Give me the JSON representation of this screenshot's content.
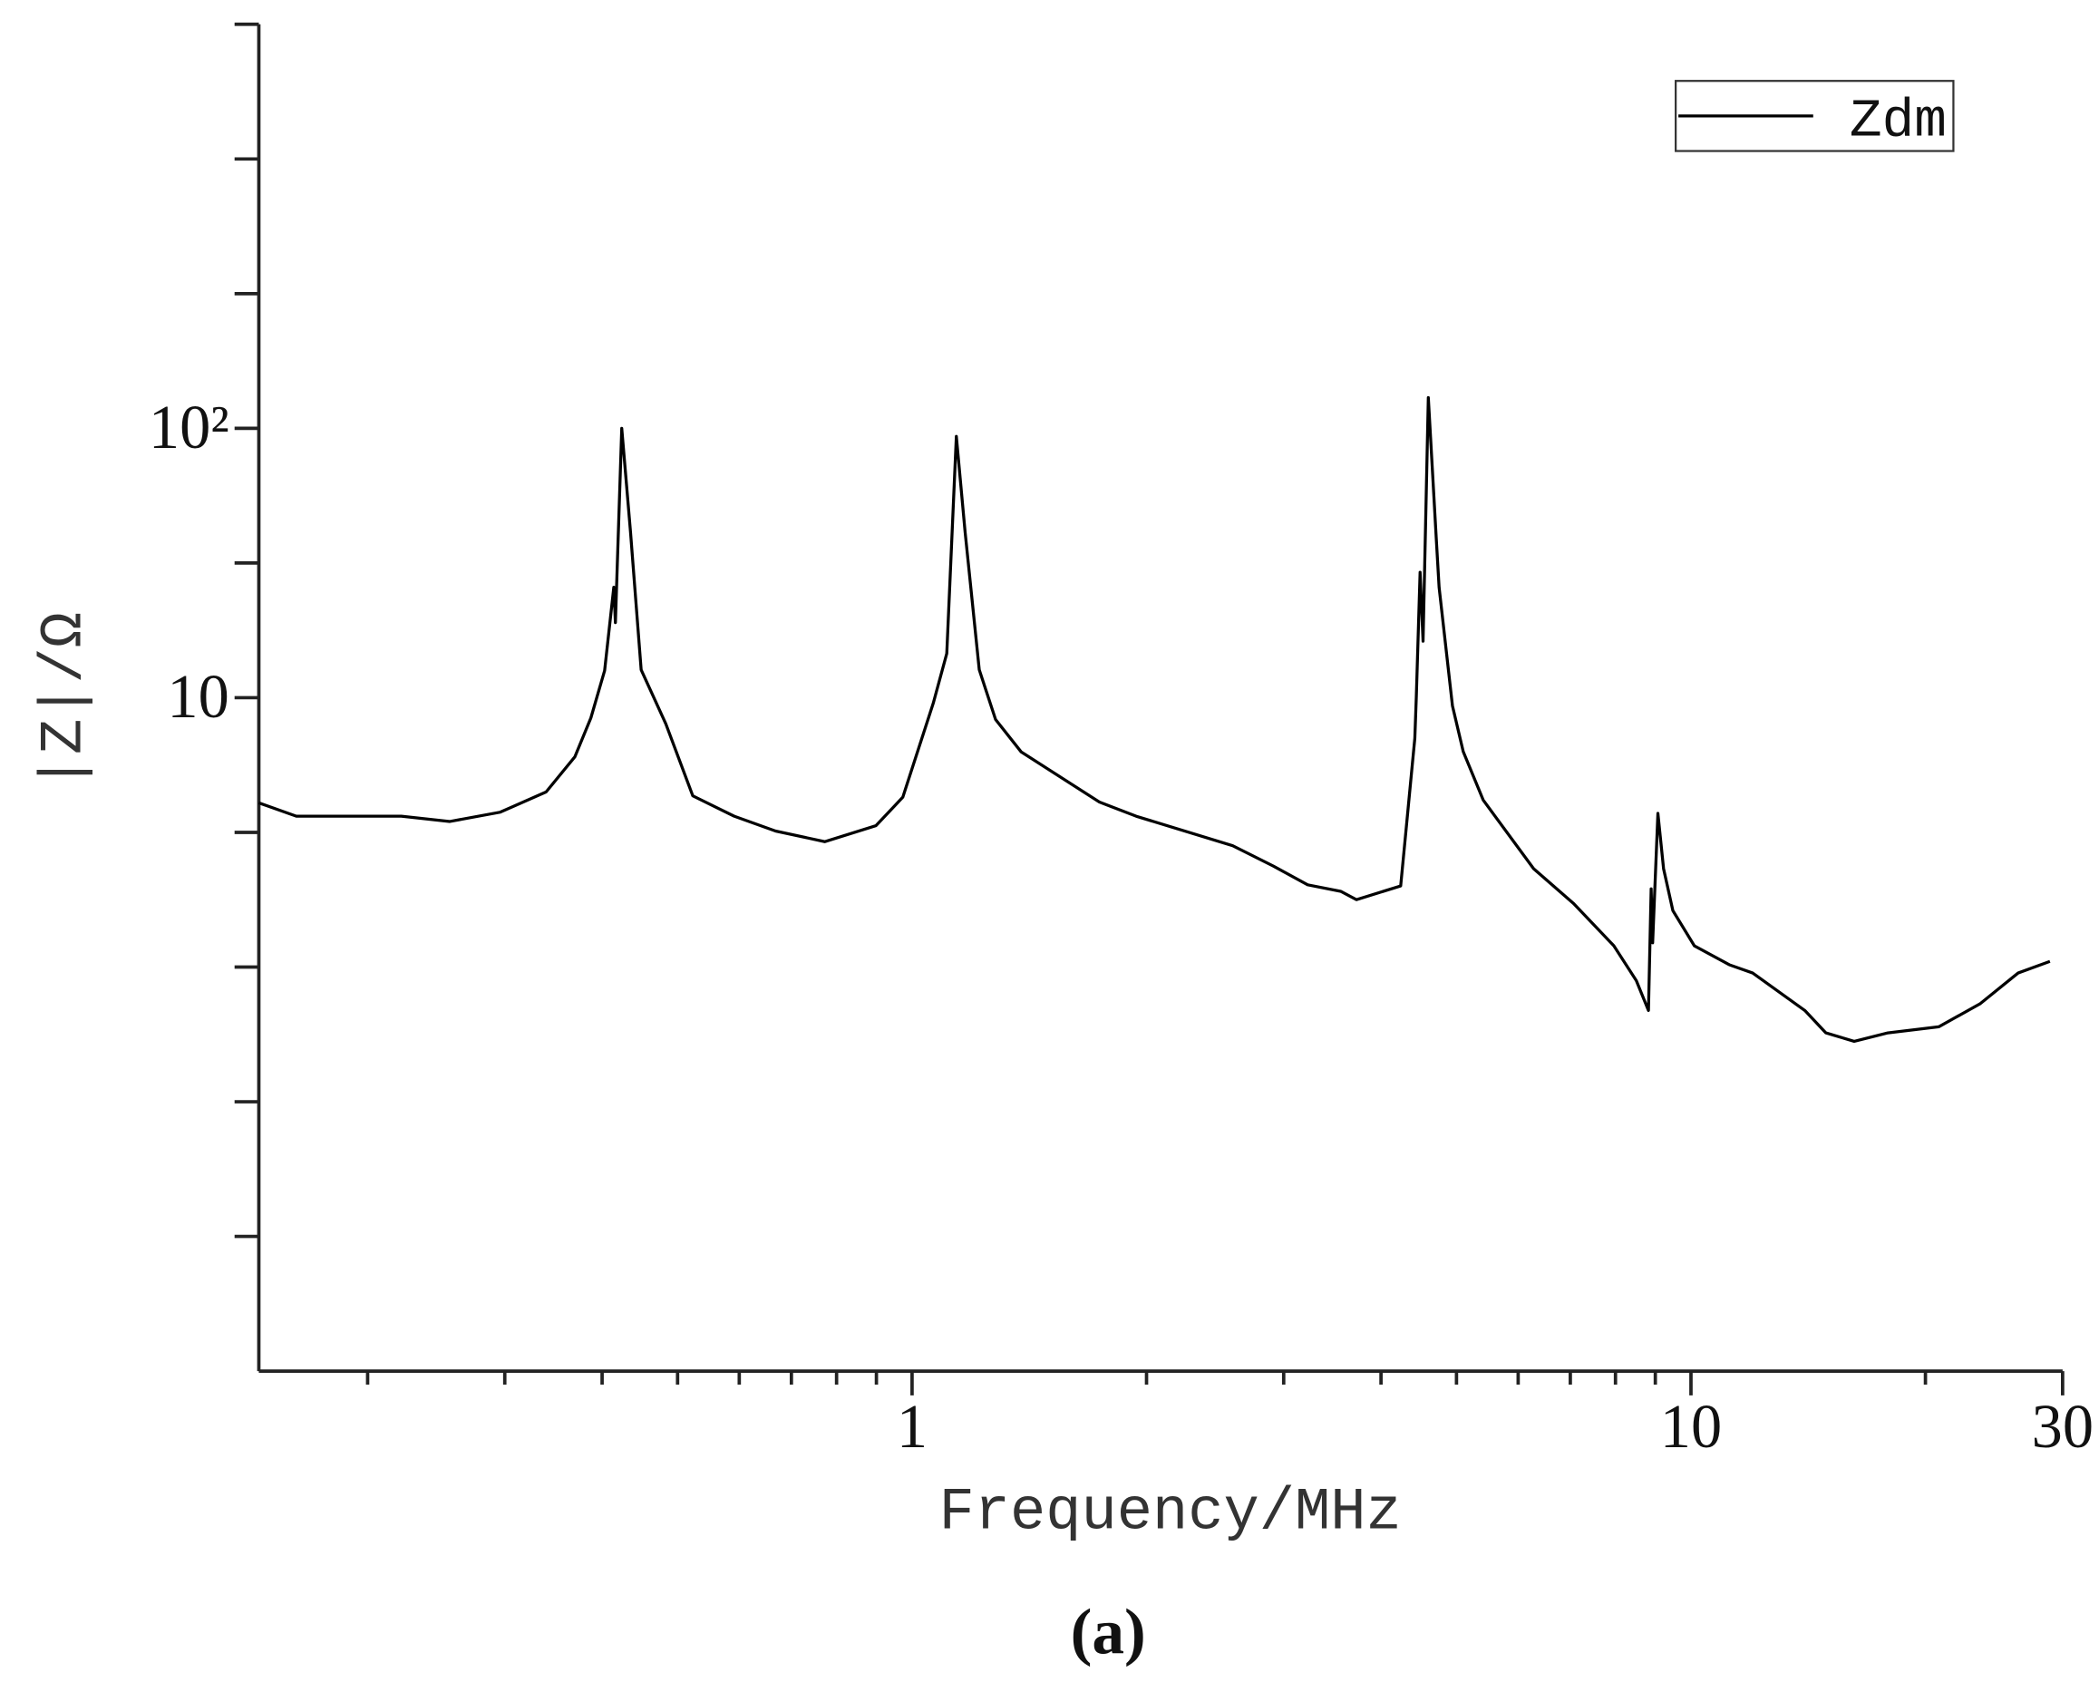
{
  "chart_data": {
    "type": "line",
    "xlabel": "Frequency/MHz",
    "ylabel": "|Z|/Ω",
    "caption": "(a)",
    "xscale": "log",
    "yscale": "log",
    "xlim": [
      0.145,
      30
    ],
    "ylim": [
      0.03162,
      3162.28
    ],
    "xticks": [
      1,
      10,
      30
    ],
    "xminor_ticks": [
      0.2,
      0.3,
      0.4,
      0.5,
      0.6,
      0.7,
      0.8,
      0.9,
      2,
      3,
      4,
      5,
      6,
      7,
      8,
      9,
      20
    ],
    "yticks": [
      {
        "value": 100,
        "label": "10²"
      },
      10
    ],
    "yminor_ticks": [
      3162.28,
      1000,
      316.23,
      31.62,
      3.162,
      1,
      0.3162,
      0.1
    ],
    "legend": "upper right",
    "x": [
      0.145,
      0.162,
      0.221,
      0.255,
      0.296,
      0.339,
      0.369,
      0.387,
      0.403,
      0.414,
      0.416,
      0.424,
      0.435,
      0.449,
      0.483,
      0.523,
      0.591,
      0.668,
      0.773,
      0.899,
      0.973,
      1.065,
      1.108,
      1.14,
      1.17,
      1.22,
      1.28,
      1.38,
      1.74,
      1.94,
      2.58,
      2.91,
      3.22,
      3.55,
      3.72,
      4.24,
      4.42,
      4.44,
      4.49,
      4.53,
      4.6,
      4.71,
      4.75,
      4.94,
      5.1,
      5.41,
      6.28,
      7.07,
      7.96,
      8.51,
      8.82,
      8.89,
      8.93,
      9.07,
      9.22,
      9.48,
      10.1,
      11.2,
      12.0,
      14.0,
      14.9,
      16.2,
      17.9,
      20.8,
      23.5,
      26.3,
      28.9
    ],
    "series": [
      {
        "name": "Zdm",
        "color": "#000000",
        "values": [
          4.07,
          3.63,
          3.63,
          3.47,
          3.76,
          4.47,
          6.03,
          8.41,
          12.6,
          25.7,
          19.0,
          100,
          41.2,
          12.7,
          8.0,
          4.32,
          3.63,
          3.2,
          2.92,
          3.35,
          4.27,
          9.55,
          14.6,
          93.3,
          41.2,
          12.7,
          8.3,
          6.3,
          4.1,
          3.63,
          2.82,
          2.37,
          2.02,
          1.91,
          1.78,
          2.0,
          7.08,
          10.1,
          29.2,
          16.2,
          130,
          38.9,
          25.7,
          9.33,
          6.31,
          4.17,
          2.32,
          1.72,
          1.2,
          0.89,
          0.69,
          1.95,
          1.23,
          3.72,
          2.32,
          1.62,
          1.2,
          1.02,
          0.95,
          0.69,
          0.57,
          0.53,
          0.57,
          0.6,
          0.73,
          0.95,
          1.05
        ]
      }
    ]
  }
}
